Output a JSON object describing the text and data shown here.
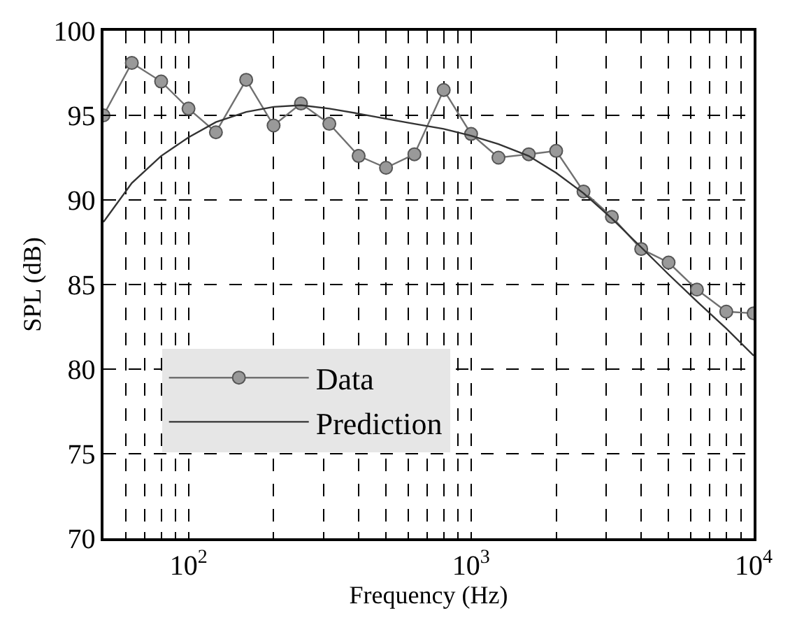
{
  "chart_data": {
    "type": "line",
    "xlabel": "Frequency (Hz)",
    "ylabel": "SPL (dB)",
    "x": [
      50,
      63,
      80,
      100,
      125,
      160,
      200,
      250,
      315,
      400,
      500,
      630,
      800,
      1000,
      1250,
      1600,
      2000,
      2500,
      3150,
      4000,
      5000,
      6300,
      8000,
      10000
    ],
    "series": [
      {
        "name": "Data",
        "color": "#999999",
        "marker": "circle",
        "values": [
          95.0,
          98.1,
          97.0,
          95.4,
          94.0,
          97.1,
          94.4,
          95.7,
          94.5,
          92.6,
          91.9,
          92.7,
          96.5,
          93.9,
          92.5,
          92.7,
          92.9,
          90.5,
          89.0,
          87.1,
          86.3,
          84.7,
          83.4,
          83.3
        ]
      },
      {
        "name": "Prediction",
        "color": "#333333",
        "marker": "none",
        "values": [
          88.7,
          91.0,
          92.6,
          93.7,
          94.6,
          95.2,
          95.5,
          95.6,
          95.4,
          95.1,
          94.8,
          94.5,
          94.2,
          93.8,
          93.3,
          92.6,
          91.6,
          90.4,
          88.9,
          87.2,
          85.6,
          84.0,
          82.4,
          80.8
        ]
      }
    ],
    "log": "x",
    "xlim": [
      50,
      10000
    ],
    "xticks": [
      {
        "value": 60,
        "label": null
      },
      {
        "value": 70,
        "label": null
      },
      {
        "value": 80,
        "label": null
      },
      {
        "value": 90,
        "label": null
      },
      {
        "value": 100,
        "label": "10$^{2}$"
      },
      {
        "value": 200,
        "label": null
      },
      {
        "value": 300,
        "label": null
      },
      {
        "value": 400,
        "label": null
      },
      {
        "value": 500,
        "label": null
      },
      {
        "value": 600,
        "label": null
      },
      {
        "value": 700,
        "label": null
      },
      {
        "value": 800,
        "label": null
      },
      {
        "value": 900,
        "label": null
      },
      {
        "value": 1000,
        "label": "10$^{3}$"
      },
      {
        "value": 2000,
        "label": null
      },
      {
        "value": 3000,
        "label": null
      },
      {
        "value": 4000,
        "label": null
      },
      {
        "value": 5000,
        "label": null
      },
      {
        "value": 6000,
        "label": null
      },
      {
        "value": 7000,
        "label": null
      },
      {
        "value": 8000,
        "label": null
      },
      {
        "value": 9000,
        "label": null
      },
      {
        "value": 10000,
        "label": "10$^{4}$"
      }
    ],
    "ylim": [
      70,
      100
    ],
    "yticks": [
      70,
      75,
      80,
      85,
      90,
      95,
      100
    ],
    "grid": true,
    "line_style": "solid",
    "legend": "bottom left"
  }
}
